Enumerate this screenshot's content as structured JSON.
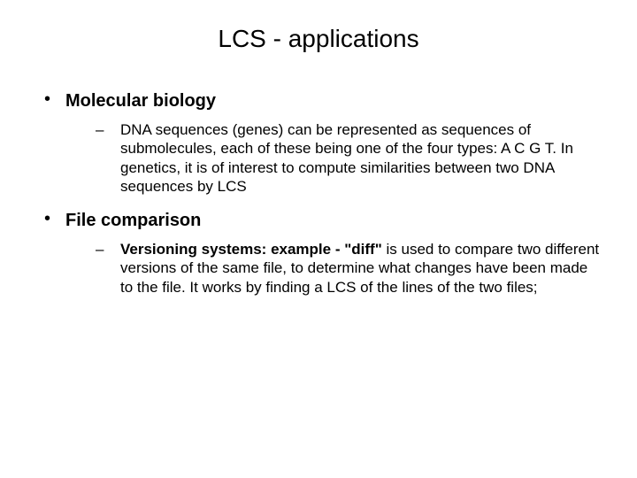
{
  "background_color": "#ffffff",
  "text_color": "#000000",
  "font_family": "Arial, Helvetica, sans-serif",
  "title": {
    "text": "LCS - applications",
    "fontsize": 28,
    "weight": "normal",
    "align": "center"
  },
  "items": [
    {
      "heading": "Molecular biology",
      "heading_fontsize": 20,
      "heading_weight": "bold",
      "sub": [
        {
          "text": "DNA sequences (genes) can be represented as sequences of submolecules, each of these being one of the four types: A C G T. In genetics, it is of interest to compute similarities between two DNA sequences by LCS",
          "fontsize": 17
        }
      ]
    },
    {
      "heading": "File comparison",
      "heading_fontsize": 20,
      "heading_weight": "bold",
      "sub": [
        {
          "lead_bold": "Versioning systems: example -  \"diff\"",
          "rest": " is used to compare two different versions of the same file, to determine what changes have been made to the file. It works by finding a LCS of the lines of the two files;",
          "fontsize": 17
        }
      ]
    }
  ]
}
